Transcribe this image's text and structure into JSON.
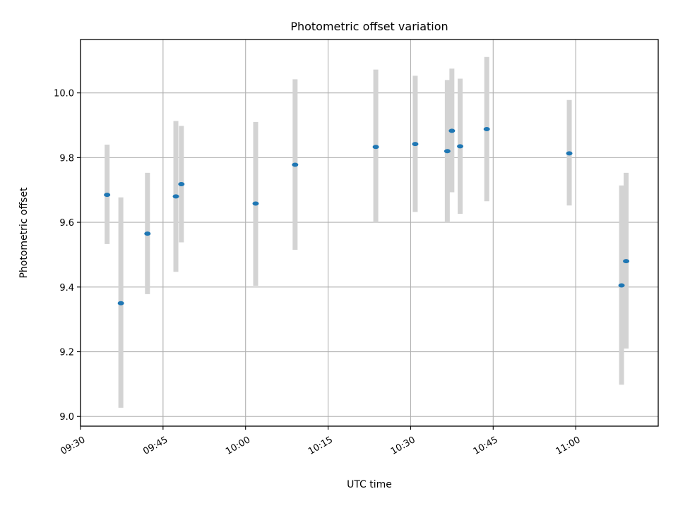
{
  "chart_data": {
    "type": "scatter",
    "title": "Photometric offset variation",
    "xlabel": "UTC time",
    "ylabel": "Photometric offset",
    "x_is_time": true,
    "xlim": [
      "09:30",
      "11:15"
    ],
    "ylim": [
      8.97,
      10.165
    ],
    "grid": true,
    "x_ticks": [
      "09:30",
      "09:45",
      "10:00",
      "10:15",
      "10:30",
      "10:45",
      "11:00"
    ],
    "y_ticks": [
      "9.0",
      "9.2",
      "9.4",
      "9.6",
      "9.8",
      "10.0"
    ],
    "marker_color": "#1f77b4",
    "errorbar_color": "#d3d3d3",
    "points": [
      {
        "t": "09:34:50",
        "y": 9.685,
        "low": 9.533,
        "high": 9.84
      },
      {
        "t": "09:37:20",
        "y": 9.35,
        "low": 9.027,
        "high": 9.677
      },
      {
        "t": "09:42:10",
        "y": 9.565,
        "low": 9.378,
        "high": 9.753
      },
      {
        "t": "09:47:20",
        "y": 9.68,
        "low": 9.447,
        "high": 9.913
      },
      {
        "t": "09:48:20",
        "y": 9.718,
        "low": 9.538,
        "high": 9.898
      },
      {
        "t": "10:01:50",
        "y": 9.658,
        "low": 9.404,
        "high": 9.91
      },
      {
        "t": "10:09:00",
        "y": 9.778,
        "low": 9.515,
        "high": 10.042
      },
      {
        "t": "10:23:40",
        "y": 9.833,
        "low": 9.598,
        "high": 10.072
      },
      {
        "t": "10:30:50",
        "y": 9.842,
        "low": 9.632,
        "high": 10.053
      },
      {
        "t": "10:36:40",
        "y": 9.82,
        "low": 9.6,
        "high": 10.04
      },
      {
        "t": "10:37:30",
        "y": 9.883,
        "low": 9.693,
        "high": 10.075
      },
      {
        "t": "10:39:00",
        "y": 9.835,
        "low": 9.626,
        "high": 10.044
      },
      {
        "t": "10:43:50",
        "y": 9.888,
        "low": 9.665,
        "high": 10.111
      },
      {
        "t": "10:58:50",
        "y": 9.813,
        "low": 9.652,
        "high": 9.978
      },
      {
        "t": "11:08:20",
        "y": 9.405,
        "low": 9.098,
        "high": 9.714
      },
      {
        "t": "11:09:10",
        "y": 9.48,
        "low": 9.21,
        "high": 9.753
      }
    ]
  }
}
